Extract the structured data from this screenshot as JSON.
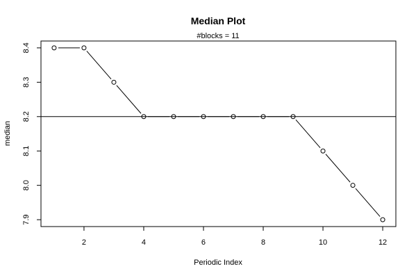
{
  "chart_data": {
    "type": "line",
    "title": "Median Plot",
    "subtitle": "#blocks =  11",
    "xlabel": "Periodic Index",
    "ylabel": "median",
    "x": [
      1,
      2,
      3,
      4,
      5,
      6,
      7,
      8,
      9,
      10,
      11,
      12
    ],
    "values": [
      8.4,
      8.4,
      8.3,
      8.2,
      8.2,
      8.2,
      8.2,
      8.2,
      8.2,
      8.1,
      8.0,
      7.9
    ],
    "xlim": [
      0.56,
      12.44
    ],
    "ylim": [
      7.88,
      8.42
    ],
    "xticks": [
      "2",
      "4",
      "6",
      "8",
      "10",
      "12"
    ],
    "yticks": [
      "7.9",
      "8.0",
      "8.1",
      "8.2",
      "8.3",
      "8.4"
    ],
    "reference_line_y": 8.2,
    "marker": "open-circle",
    "grid": false,
    "legend": "none"
  }
}
